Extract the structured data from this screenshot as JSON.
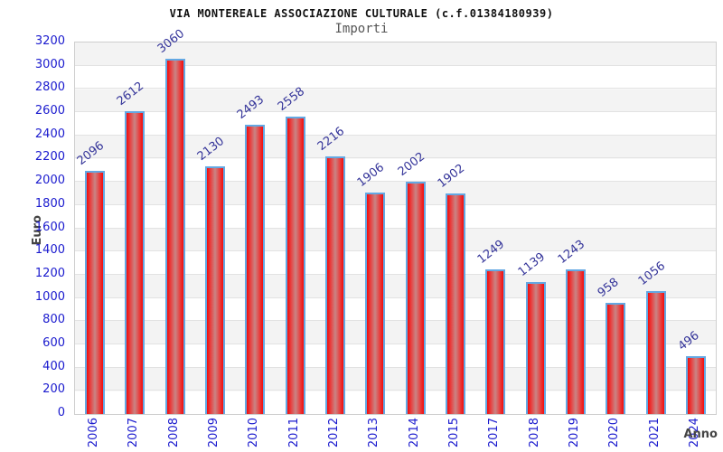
{
  "page": {
    "background": "#ffffff"
  },
  "chart_data": {
    "type": "bar",
    "title": "VIA MONTEREALE ASSOCIAZIONE CULTURALE (c.f.01384180939)",
    "subtitle": "Importi",
    "xlabel": "Anno",
    "ylabel": "Euro",
    "categories": [
      "2006",
      "2007",
      "2008",
      "2009",
      "2010",
      "2011",
      "2012",
      "2013",
      "2014",
      "2015",
      "2017",
      "2018",
      "2019",
      "2020",
      "2021",
      "2024"
    ],
    "values": [
      2096,
      2612,
      3060,
      2130,
      2493,
      2558,
      2216,
      1906,
      2002,
      1902,
      1249,
      1139,
      1243,
      958,
      1056,
      496
    ],
    "ylim": [
      0,
      3200
    ],
    "ytick_step": 200,
    "yticks": [
      0,
      200,
      400,
      600,
      800,
      1000,
      1200,
      1400,
      1600,
      1800,
      2000,
      2200,
      2400,
      2600,
      2800,
      3000,
      3200
    ],
    "grid": true,
    "legend": null,
    "value_labels_shown": true,
    "value_label_rotation_deg": -38,
    "xtick_rotation_deg": -90,
    "striped_background": true
  },
  "colors": {
    "tick": "#1a1ace",
    "value_label": "#333399",
    "bar_edge": "#f20d0d",
    "bar_center": "#c98585",
    "bar_border": "#63a8e3",
    "stripe": "#f3f3f3",
    "grid": "#e2e2e2",
    "axis_title": "#444444",
    "title": "#111111",
    "subtitle": "#555555"
  }
}
